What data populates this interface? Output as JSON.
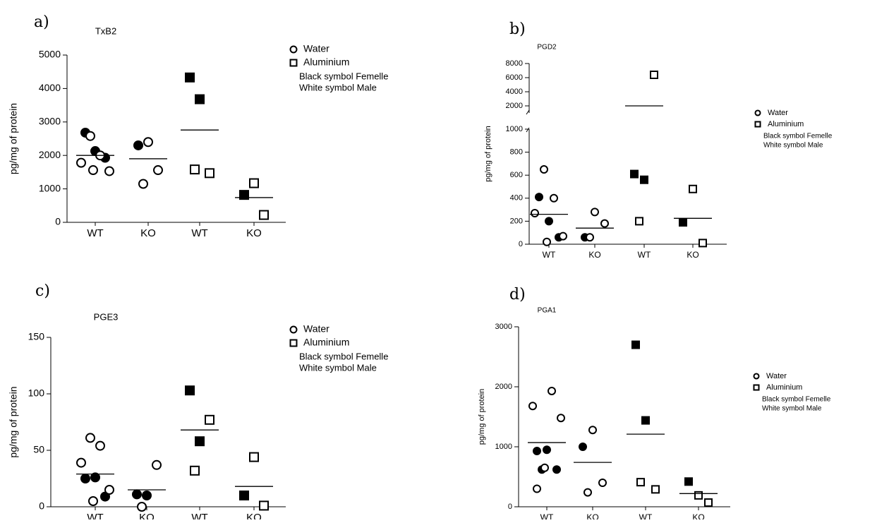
{
  "chart_data": [
    {
      "type": "dotplot",
      "panel": "a)",
      "title": "TxB2",
      "y_label": "pg/mg of protein",
      "legend": [
        "Water",
        "Aluminium"
      ],
      "notes": [
        "Black symbol Femelle",
        "White symbol Male"
      ],
      "ylim": [
        0,
        5000
      ],
      "yticks": [
        0,
        1000,
        2000,
        3000,
        4000,
        5000
      ],
      "groups": [
        {
          "category": "WT",
          "marker": "circle",
          "female": [
            2680,
            2130,
            1930
          ],
          "male": [
            2580,
            2000,
            1780,
            1530,
            1560
          ],
          "mean": 2000
        },
        {
          "category": "KO",
          "marker": "circle",
          "female": [
            2300
          ],
          "male": [
            2400,
            1560,
            1150
          ],
          "mean": 1900
        },
        {
          "category": "WT",
          "marker": "square",
          "female": [
            4330,
            3680
          ],
          "male": [
            1470,
            1580
          ],
          "mean": 2760
        },
        {
          "category": "KO",
          "marker": "square",
          "female": [
            820
          ],
          "male": [
            1170,
            220
          ],
          "mean": 740
        }
      ]
    },
    {
      "type": "dotplot",
      "panel": "b)",
      "title": "PGD2",
      "y_label": "pg/mg of protein",
      "legend": [
        "Water",
        "Aluminium"
      ],
      "notes": [
        "Black symbol Femelle",
        "White symbol Male"
      ],
      "ylim": [
        0,
        1000
      ],
      "yticks": [
        0,
        200,
        400,
        600,
        800,
        1000
      ],
      "ylim_upper": [
        1000,
        8000
      ],
      "yticks_upper": [
        2000,
        4000,
        6000,
        8000
      ],
      "groups": [
        {
          "category": "WT",
          "marker": "circle",
          "female": [
            410,
            200,
            60
          ],
          "male": [
            650,
            400,
            270,
            70,
            20
          ],
          "mean": 260
        },
        {
          "category": "KO",
          "marker": "circle",
          "female": [
            60
          ],
          "male": [
            280,
            180,
            60
          ],
          "mean": 140
        },
        {
          "category": "WT",
          "marker": "square",
          "female": [
            610,
            560
          ],
          "male": [
            6400,
            200
          ],
          "mean": 2000
        },
        {
          "category": "KO",
          "marker": "square",
          "female": [
            190
          ],
          "male": [
            480,
            10
          ],
          "mean": 225
        }
      ]
    },
    {
      "type": "dotplot",
      "panel": "c)",
      "title": "PGE3",
      "y_label": "pg/mg of protein",
      "legend": [
        "Water",
        "Aluminium"
      ],
      "notes": [
        "Black symbol Femelle",
        "White symbol Male"
      ],
      "ylim": [
        0,
        150
      ],
      "yticks": [
        0,
        50,
        100,
        150
      ],
      "groups": [
        {
          "category": "WT",
          "marker": "circle",
          "female": [
            25,
            26,
            9
          ],
          "male": [
            61,
            54,
            39,
            15,
            5
          ],
          "mean": 29
        },
        {
          "category": "KO",
          "marker": "circle",
          "female": [
            11,
            10
          ],
          "male": [
            37,
            0
          ],
          "mean": 15
        },
        {
          "category": "WT",
          "marker": "square",
          "female": [
            103,
            58
          ],
          "male": [
            77,
            32
          ],
          "mean": 68
        },
        {
          "category": "KO",
          "marker": "square",
          "female": [
            10
          ],
          "male": [
            44,
            1
          ],
          "mean": 18
        }
      ]
    },
    {
      "type": "dotplot",
      "panel": "d)",
      "title": "PGA1",
      "y_label": "pg/mg of protein",
      "legend": [
        "Water",
        "Aluminium"
      ],
      "notes": [
        "Black symbol Femelle",
        "White symbol Male"
      ],
      "ylim": [
        0,
        3000
      ],
      "yticks": [
        0,
        1000,
        2000,
        3000
      ],
      "groups": [
        {
          "category": "WT",
          "marker": "circle",
          "female": [
            930,
            950,
            620,
            620
          ],
          "male": [
            1930,
            1680,
            1480,
            650,
            300
          ],
          "mean": 1070
        },
        {
          "category": "KO",
          "marker": "circle",
          "female": [
            1000
          ],
          "male": [
            1280,
            400,
            240
          ],
          "mean": 740
        },
        {
          "category": "WT",
          "marker": "square",
          "female": [
            2700,
            1440
          ],
          "male": [
            290,
            410
          ],
          "mean": 1210
        },
        {
          "category": "KO",
          "marker": "square",
          "female": [
            420
          ],
          "male": [
            190,
            70
          ],
          "mean": 220
        }
      ]
    }
  ]
}
